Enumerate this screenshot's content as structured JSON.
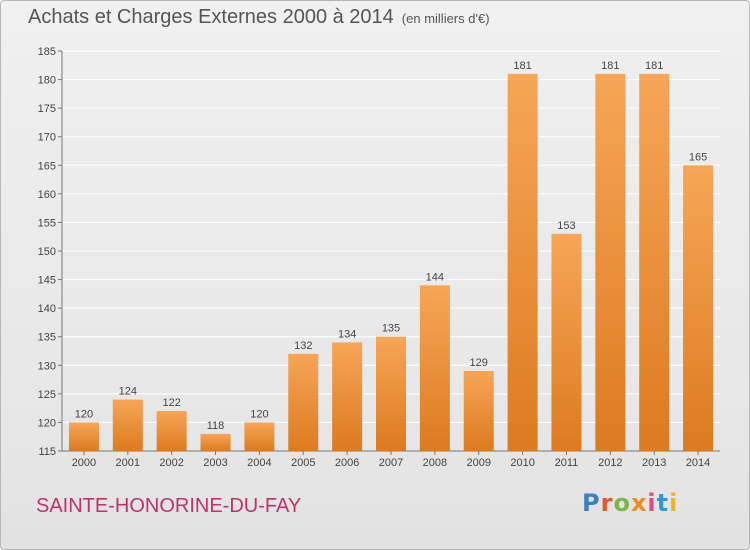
{
  "header": {
    "title": "Achats et Charges Externes 2000 à 2014",
    "unit": "(en milliers d'€)"
  },
  "footer": {
    "commune": "SAINTE-HONORINE-DU-FAY",
    "brand": "Proxiti",
    "brand_colors": [
      "#3b7fc4",
      "#e2572c",
      "#7ab648",
      "#ef8c1d",
      "#d94f8a",
      "#2f9bd6",
      "#f0b323"
    ]
  },
  "colors": {
    "bar_light": "#f6a657",
    "bar_dark": "#dd7a1f",
    "label": "#444444",
    "grid": "#ffffff"
  },
  "chart_data": {
    "type": "bar",
    "categories": [
      "2000",
      "2001",
      "2002",
      "2003",
      "2004",
      "2005",
      "2006",
      "2007",
      "2008",
      "2009",
      "2010",
      "2011",
      "2012",
      "2013",
      "2014"
    ],
    "values": [
      120,
      124,
      122,
      118,
      120,
      132,
      134,
      135,
      144,
      129,
      181,
      153,
      181,
      181,
      165
    ],
    "title": "Achats et Charges Externes 2000 à 2014",
    "ylim": [
      115,
      185
    ],
    "yticks": [
      115,
      120,
      125,
      130,
      135,
      140,
      145,
      150,
      155,
      160,
      165,
      170,
      175,
      180,
      185
    ],
    "grid": true,
    "legend": "none"
  }
}
